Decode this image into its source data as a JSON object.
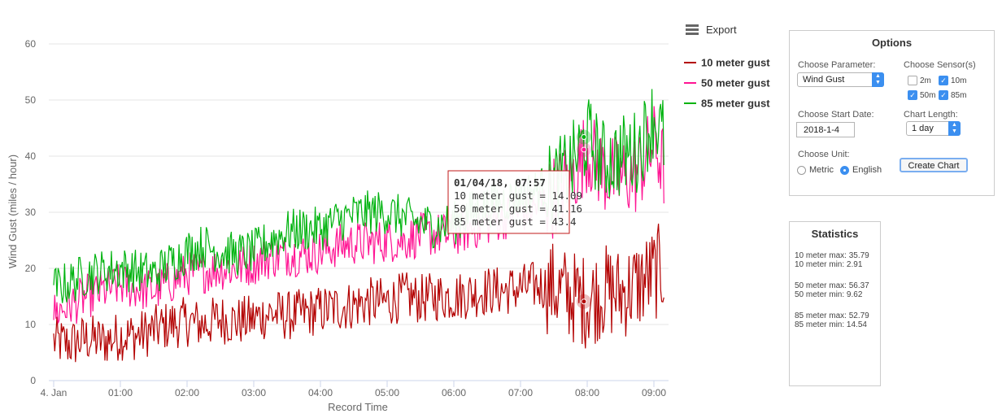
{
  "chart_data": {
    "type": "line",
    "title": "",
    "xlabel": "Record Time",
    "ylabel": "Wind Gust (miles / hour)",
    "ylim": [
      0,
      60
    ],
    "y_ticks": [
      0,
      10,
      20,
      30,
      40,
      50,
      60
    ],
    "x_range_hours": [
      0,
      9.15
    ],
    "x_ticks": [
      {
        "hour": 0,
        "label": "4. Jan"
      },
      {
        "hour": 1,
        "label": "01:00"
      },
      {
        "hour": 2,
        "label": "02:00"
      },
      {
        "hour": 3,
        "label": "03:00"
      },
      {
        "hour": 4,
        "label": "04:00"
      },
      {
        "hour": 5,
        "label": "05:00"
      },
      {
        "hour": 6,
        "label": "06:00"
      },
      {
        "hour": 7,
        "label": "07:00"
      },
      {
        "hour": 8,
        "label": "08:00"
      },
      {
        "hour": 9,
        "label": "09:00"
      }
    ],
    "grid": "horizontal",
    "legend_position": "right",
    "series": [
      {
        "name": "10 meter gust",
        "color": "#b30000",
        "x": [
          0,
          0.25,
          0.5,
          0.75,
          1,
          1.25,
          1.5,
          1.75,
          2,
          2.25,
          2.5,
          2.75,
          3,
          3.25,
          3.5,
          3.75,
          4,
          4.25,
          4.5,
          4.75,
          5,
          5.25,
          5.5,
          5.75,
          6,
          6.25,
          6.5,
          6.75,
          7,
          7.25,
          7.5,
          7.75,
          8,
          8.25,
          8.5,
          8.75,
          9,
          9.15
        ],
        "y": [
          7,
          6.5,
          7.5,
          7,
          8,
          8,
          9,
          10,
          10.5,
          10,
          11,
          10.5,
          11,
          12,
          11.5,
          12,
          12.5,
          13,
          13.5,
          14,
          14,
          15,
          14.5,
          15,
          15,
          15.5,
          16,
          16,
          16.5,
          17,
          16.5,
          15,
          14.1,
          16,
          15.5,
          17,
          19,
          20
        ]
      },
      {
        "name": "50 meter gust",
        "color": "#ff1493",
        "x": [
          0,
          0.25,
          0.5,
          0.75,
          1,
          1.25,
          1.5,
          1.75,
          2,
          2.25,
          2.5,
          2.75,
          3,
          3.25,
          3.5,
          3.75,
          4,
          4.25,
          4.5,
          4.75,
          5,
          5.25,
          5.5,
          5.75,
          6,
          6.25,
          6.5,
          6.75,
          7,
          7.25,
          7.5,
          7.75,
          8,
          8.25,
          8.5,
          8.75,
          9,
          9.15
        ],
        "y": [
          12,
          13.5,
          15,
          16,
          17,
          16.5,
          16,
          17.5,
          19,
          19.5,
          20,
          20,
          21,
          22,
          22.5,
          22.5,
          23,
          24,
          24.5,
          24.5,
          25,
          25,
          26,
          26,
          26,
          27,
          28,
          29,
          30,
          31,
          33,
          36,
          41.2,
          37,
          36,
          37,
          42,
          38
        ]
      },
      {
        "name": "85 meter gust",
        "color": "#00b30f",
        "x": [
          0,
          0.25,
          0.5,
          0.75,
          1,
          1.25,
          1.5,
          1.75,
          2,
          2.25,
          2.5,
          2.75,
          3,
          3.25,
          3.5,
          3.75,
          4,
          4.25,
          4.5,
          4.75,
          5,
          5.25,
          5.5,
          5.75,
          6,
          6.25,
          6.5,
          6.75,
          7,
          7.25,
          7.5,
          7.75,
          8,
          8.25,
          8.5,
          8.75,
          9,
          9.15
        ],
        "y": [
          16.5,
          17.5,
          19,
          19.5,
          20,
          19.5,
          19,
          21,
          23,
          24,
          23,
          22.5,
          23,
          25,
          26.5,
          27,
          27,
          28.5,
          29.5,
          30,
          30,
          29,
          28,
          27.5,
          28,
          30,
          31,
          32,
          33,
          34,
          35,
          38,
          43.4,
          39,
          40,
          41,
          47,
          43
        ]
      }
    ],
    "series_summary": [
      {
        "name": "10 meter gust",
        "max": 35.79,
        "min": 2.91
      },
      {
        "name": "50 meter gust",
        "max": 56.37,
        "min": 9.62
      },
      {
        "name": "85 meter gust",
        "max": 52.79,
        "min": 14.54
      }
    ],
    "tooltip": {
      "hour": 7.95,
      "header": "01/04/18, 07:57",
      "lines": [
        "10 meter gust = 14.09",
        "50 meter gust = 41.16",
        "85 meter gust = 43.4"
      ],
      "values": [
        14.09,
        41.16,
        43.4
      ]
    }
  },
  "export": {
    "label": "Export",
    "icon": "hamburger-menu-icon"
  },
  "options": {
    "title": "Options",
    "parameter_label": "Choose Parameter:",
    "parameter_value": "Wind Gust",
    "sensors_label": "Choose Sensor(s)",
    "sensors": [
      {
        "label": "2m",
        "checked": false
      },
      {
        "label": "10m",
        "checked": true
      },
      {
        "label": "50m",
        "checked": true
      },
      {
        "label": "85m",
        "checked": true
      }
    ],
    "start_date_label": "Choose Start Date:",
    "start_date_value": "2018-1-4",
    "length_label": "Chart Length:",
    "length_value": "1 day",
    "unit_label": "Choose Unit:",
    "unit_options": [
      {
        "label": "Metric",
        "selected": false
      },
      {
        "label": "English",
        "selected": true
      }
    ],
    "create_button": "Create Chart",
    "accent_color": "#3b8ff0"
  },
  "statistics": {
    "title": "Statistics",
    "lines": [
      [
        "10 meter max: 35.79",
        "10 meter min: 2.91"
      ],
      [
        "50 meter max: 56.37",
        "50 meter min: 9.62"
      ],
      [
        "85 meter max: 52.79",
        "85 meter min: 14.54"
      ]
    ]
  }
}
